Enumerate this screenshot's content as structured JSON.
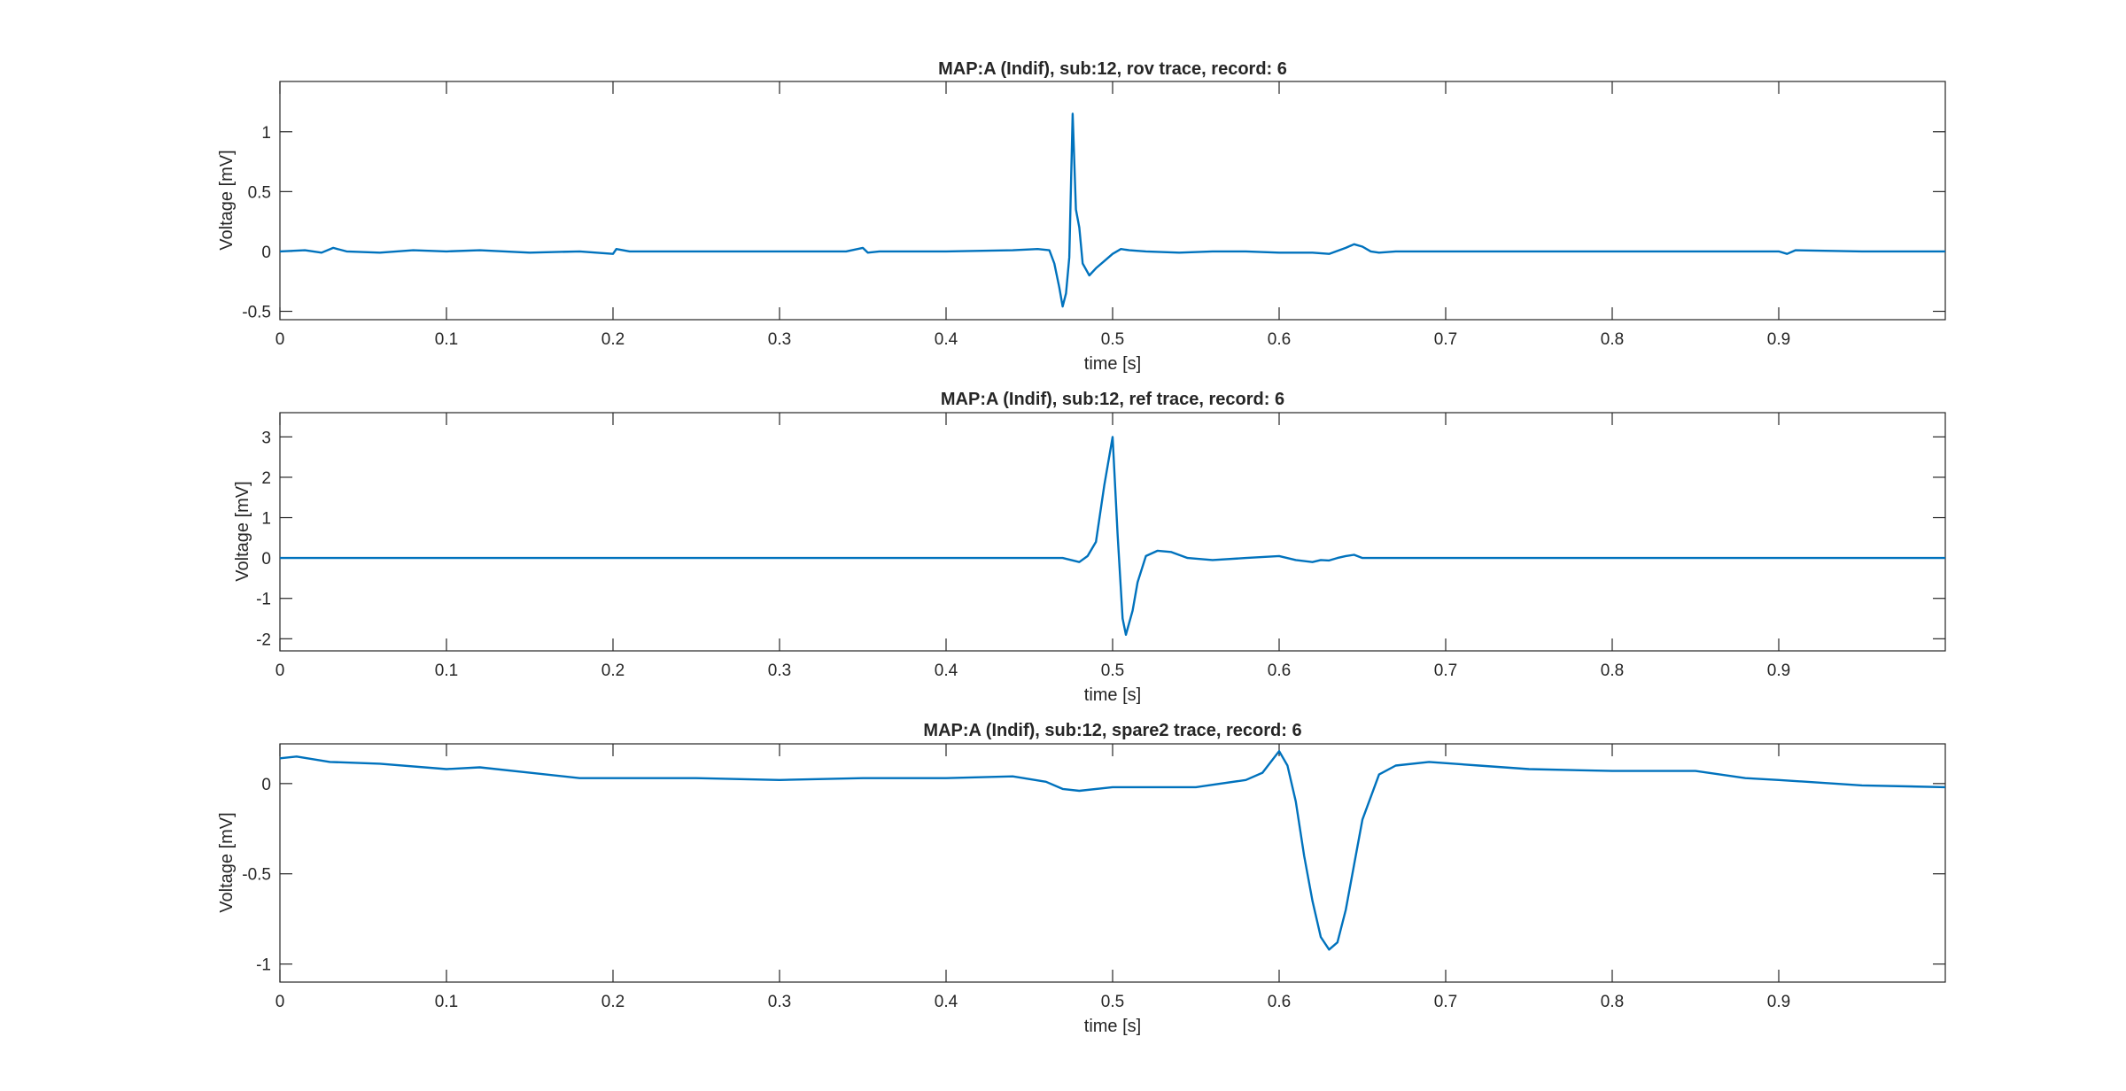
{
  "chart_data": [
    {
      "type": "line",
      "title": "MAP:A (Indif), sub:12, rov trace, record: 6",
      "xlabel": "time [s]",
      "ylabel": "Voltage [mV]",
      "xlim": [
        0,
        1
      ],
      "ylim": [
        -0.57,
        1.42
      ],
      "xticks": [
        0,
        0.1,
        0.2,
        0.3,
        0.4,
        0.5,
        0.6,
        0.7,
        0.8,
        0.9
      ],
      "xtick_labels": [
        "0",
        "0.1",
        "0.2",
        "0.3",
        "0.4",
        "0.5",
        "0.6",
        "0.7",
        "0.8",
        "0.9"
      ],
      "yticks": [
        -0.5,
        0,
        0.5,
        1
      ],
      "ytick_labels": [
        "-0.5",
        "0",
        "0.5",
        "1"
      ],
      "grid": false,
      "color": "#0072bd",
      "series": [
        {
          "x": [
            0,
            0.015,
            0.025,
            0.032,
            0.04,
            0.06,
            0.08,
            0.1,
            0.12,
            0.15,
            0.18,
            0.2,
            0.202,
            0.21,
            0.25,
            0.3,
            0.34,
            0.35,
            0.353,
            0.36,
            0.4,
            0.44,
            0.455,
            0.462,
            0.465,
            0.468,
            0.47,
            0.472,
            0.474,
            0.476,
            0.478,
            0.48,
            0.482,
            0.484,
            0.486,
            0.49,
            0.495,
            0.5,
            0.505,
            0.51,
            0.52,
            0.54,
            0.56,
            0.58,
            0.6,
            0.62,
            0.63,
            0.64,
            0.645,
            0.65,
            0.655,
            0.66,
            0.67,
            0.7,
            0.75,
            0.8,
            0.85,
            0.9,
            0.905,
            0.91,
            0.95,
            1.0
          ],
          "y": [
            0,
            0.01,
            -0.01,
            0.03,
            0.0,
            -0.01,
            0.01,
            0.0,
            0.01,
            -0.01,
            0.0,
            -0.02,
            0.02,
            0.0,
            0.0,
            0.0,
            0.0,
            0.03,
            -0.01,
            0.0,
            0.0,
            0.01,
            0.02,
            0.01,
            -0.1,
            -0.3,
            -0.46,
            -0.35,
            -0.05,
            1.15,
            0.35,
            0.2,
            -0.1,
            -0.15,
            -0.2,
            -0.14,
            -0.08,
            -0.02,
            0.02,
            0.01,
            0.0,
            -0.01,
            0.0,
            0.0,
            -0.01,
            -0.01,
            -0.02,
            0.03,
            0.06,
            0.04,
            0.0,
            -0.01,
            0.0,
            0.0,
            0.0,
            0.0,
            0.0,
            0.0,
            -0.02,
            0.01,
            0.0,
            0.0
          ]
        }
      ]
    },
    {
      "type": "line",
      "title": "MAP:A (Indif), sub:12, ref trace, record: 6",
      "xlabel": "time [s]",
      "ylabel": "Voltage [mV]",
      "xlim": [
        0,
        1
      ],
      "ylim": [
        -2.3,
        3.6
      ],
      "xticks": [
        0,
        0.1,
        0.2,
        0.3,
        0.4,
        0.5,
        0.6,
        0.7,
        0.8,
        0.9
      ],
      "xtick_labels": [
        "0",
        "0.1",
        "0.2",
        "0.3",
        "0.4",
        "0.5",
        "0.6",
        "0.7",
        "0.8",
        "0.9"
      ],
      "yticks": [
        -2,
        -1,
        0,
        1,
        2,
        3
      ],
      "ytick_labels": [
        "-2",
        "-1",
        "0",
        "1",
        "2",
        "3"
      ],
      "grid": false,
      "color": "#0072bd",
      "series": [
        {
          "x": [
            0,
            0.1,
            0.2,
            0.3,
            0.4,
            0.46,
            0.47,
            0.48,
            0.485,
            0.49,
            0.495,
            0.5,
            0.503,
            0.506,
            0.508,
            0.512,
            0.515,
            0.52,
            0.527,
            0.535,
            0.545,
            0.56,
            0.58,
            0.6,
            0.61,
            0.62,
            0.625,
            0.63,
            0.635,
            0.64,
            0.645,
            0.65,
            0.66,
            0.7,
            0.8,
            0.9,
            1.0
          ],
          "y": [
            0,
            0,
            0,
            0,
            0,
            0,
            0.0,
            -0.1,
            0.05,
            0.4,
            1.8,
            3.0,
            0.6,
            -1.5,
            -1.9,
            -1.3,
            -0.6,
            0.05,
            0.18,
            0.15,
            0.0,
            -0.05,
            0.0,
            0.05,
            -0.05,
            -0.1,
            -0.05,
            -0.06,
            0.0,
            0.05,
            0.08,
            0.0,
            0.0,
            0.0,
            0.0,
            0.0,
            0.0
          ]
        }
      ]
    },
    {
      "type": "line",
      "title": "MAP:A (Indif), sub:12, spare2 trace, record: 6",
      "xlabel": "time [s]",
      "ylabel": "Voltage [mV]",
      "xlim": [
        0,
        1
      ],
      "ylim": [
        -1.1,
        0.22
      ],
      "xticks": [
        0,
        0.1,
        0.2,
        0.3,
        0.4,
        0.5,
        0.6,
        0.7,
        0.8,
        0.9
      ],
      "xtick_labels": [
        "0",
        "0.1",
        "0.2",
        "0.3",
        "0.4",
        "0.5",
        "0.6",
        "0.7",
        "0.8",
        "0.9"
      ],
      "yticks": [
        -1,
        -0.5,
        0
      ],
      "ytick_labels": [
        "-1",
        "-0.5",
        "0"
      ],
      "grid": false,
      "color": "#0072bd",
      "series": [
        {
          "x": [
            0,
            0.01,
            0.03,
            0.06,
            0.1,
            0.12,
            0.15,
            0.18,
            0.2,
            0.25,
            0.3,
            0.35,
            0.4,
            0.44,
            0.46,
            0.47,
            0.48,
            0.5,
            0.55,
            0.58,
            0.59,
            0.595,
            0.6,
            0.605,
            0.61,
            0.615,
            0.62,
            0.625,
            0.63,
            0.635,
            0.64,
            0.645,
            0.65,
            0.66,
            0.67,
            0.69,
            0.72,
            0.75,
            0.8,
            0.85,
            0.88,
            0.9,
            0.95,
            1.0
          ],
          "y": [
            0.14,
            0.15,
            0.12,
            0.11,
            0.08,
            0.09,
            0.06,
            0.03,
            0.03,
            0.03,
            0.02,
            0.03,
            0.03,
            0.04,
            0.01,
            -0.03,
            -0.04,
            -0.02,
            -0.02,
            0.02,
            0.06,
            0.12,
            0.18,
            0.1,
            -0.1,
            -0.4,
            -0.65,
            -0.85,
            -0.92,
            -0.88,
            -0.7,
            -0.45,
            -0.2,
            0.05,
            0.1,
            0.12,
            0.1,
            0.08,
            0.07,
            0.07,
            0.03,
            0.02,
            -0.01,
            -0.02
          ]
        }
      ]
    }
  ]
}
